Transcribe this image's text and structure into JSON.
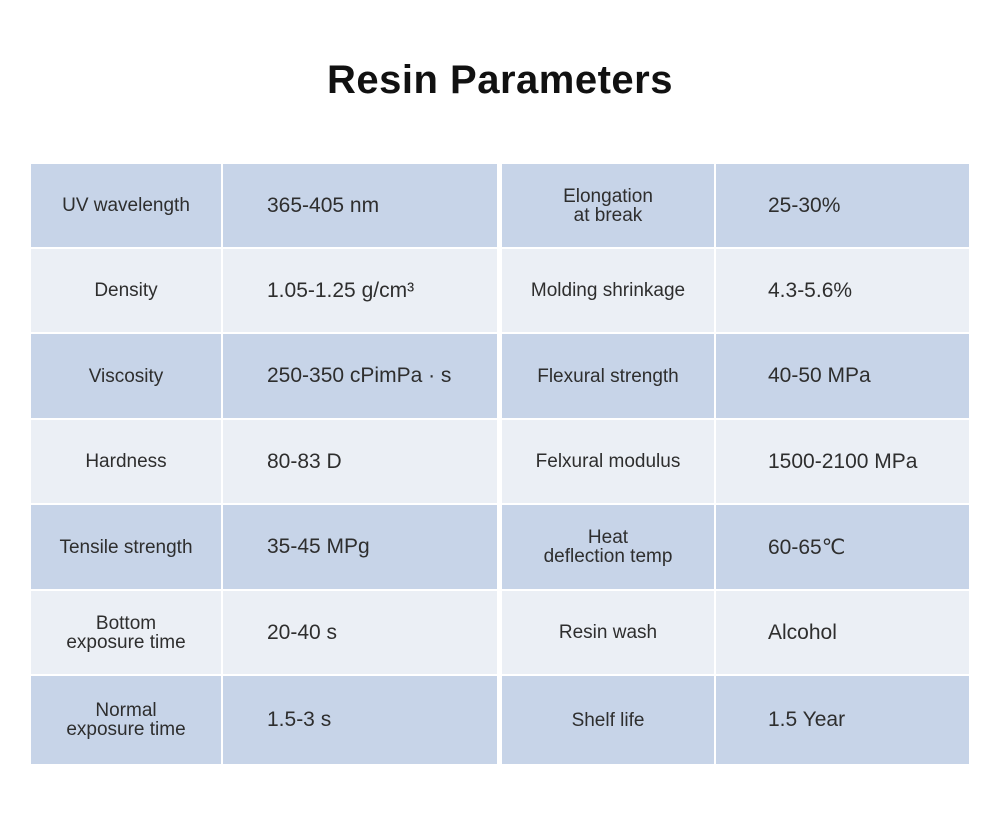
{
  "page": {
    "title": "Resin Parameters"
  },
  "colors": {
    "row_dark": "#c7d4e8",
    "row_light": "#ebeff5",
    "title": "#111111"
  },
  "table": {
    "left": [
      {
        "label": "UV wavelength",
        "value": "365-405 nm"
      },
      {
        "label": "Density",
        "value": "1.05-1.25 g/cm³"
      },
      {
        "label": "Viscosity",
        "value": "250-350 cPimPa · s"
      },
      {
        "label": "Hardness",
        "value": "80-83 D"
      },
      {
        "label": "Tensile strength",
        "value": "35-45 MPg"
      },
      {
        "label": "Bottom\nexposure time",
        "value": "20-40 s"
      },
      {
        "label": "Normal\nexposure time",
        "value": "1.5-3 s"
      }
    ],
    "right": [
      {
        "label": "Elongation\nat break",
        "value": "25-30%"
      },
      {
        "label": "Molding shrinkage",
        "value": "4.3-5.6%"
      },
      {
        "label": "Flexural strength",
        "value": "40-50 MPa"
      },
      {
        "label": "Felxural modulus",
        "value": "1500-2100 MPa"
      },
      {
        "label": "Heat\ndeflection temp",
        "value": "60-65℃"
      },
      {
        "label": "Resin wash",
        "value": "Alcohol"
      },
      {
        "label": "Shelf life",
        "value": "1.5 Year"
      }
    ]
  }
}
